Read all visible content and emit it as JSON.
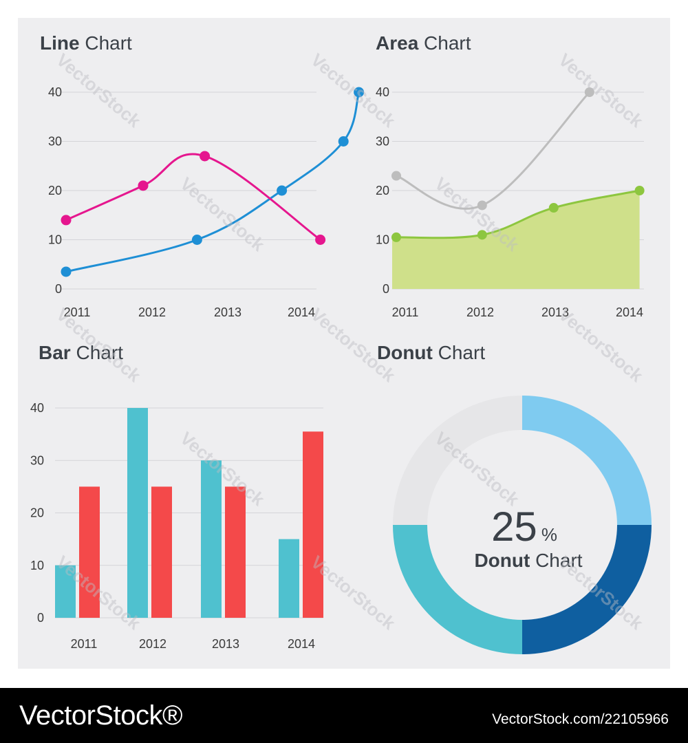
{
  "colors": {
    "panel": "#eeeef0",
    "line_blue": "#1e8fd5",
    "line_pink": "#e5168e",
    "area_gray": "#bdbdbd",
    "area_green_line": "#8dc63f",
    "area_green_fill": "#cfe08a",
    "bar_teal": "#4fc1cf",
    "bar_red": "#f4494a",
    "donut_light_blue": "#7fcbf0",
    "donut_dark_blue": "#0f5fa0",
    "donut_teal": "#4fc1cf",
    "donut_gray": "#e6e6e8"
  },
  "watermark": "VectorStock",
  "footer": {
    "logo": "VectorStock®",
    "image_id": "VectorStock.com/22105966"
  },
  "chart_data": [
    {
      "type": "line",
      "title_bold": "Line",
      "title_rest": " Chart",
      "categories": [
        "2011",
        "2012",
        "2013",
        "2014"
      ],
      "ylim": [
        0,
        40
      ],
      "yticks": [
        0,
        10,
        20,
        30,
        40
      ],
      "series": [
        {
          "name": "blue",
          "color": "#1e8fd5",
          "x": [
            0,
            1.7,
            2.8,
            3.6,
            3.8
          ],
          "y": [
            3.5,
            10,
            20,
            30,
            40
          ]
        },
        {
          "name": "pink",
          "color": "#e5168e",
          "x": [
            0,
            1.0,
            1.8,
            3.3
          ],
          "y": [
            14,
            21,
            27,
            10
          ]
        }
      ]
    },
    {
      "type": "area",
      "title_bold": "Area",
      "title_rest": " Chart",
      "categories": [
        "2011",
        "2012",
        "2013",
        "2014"
      ],
      "ylim": [
        0,
        40
      ],
      "yticks": [
        0,
        10,
        20,
        30,
        40
      ],
      "series": [
        {
          "name": "gray",
          "color": "#bdbdbd",
          "x": [
            0,
            1.2,
            2.7
          ],
          "y": [
            23,
            17,
            40
          ],
          "filled": false
        },
        {
          "name": "green",
          "color": "#8dc63f",
          "x": [
            0,
            1.2,
            2.2,
            3.4
          ],
          "y": [
            10.5,
            11,
            16.5,
            20
          ],
          "filled": true
        }
      ]
    },
    {
      "type": "bar",
      "title_bold": "Bar",
      "title_rest": " Chart",
      "categories": [
        "2011",
        "2012",
        "2013",
        "2014"
      ],
      "ylim": [
        0,
        40
      ],
      "yticks": [
        0,
        10,
        20,
        30,
        40
      ],
      "series": [
        {
          "name": "teal",
          "color": "#4fc1cf",
          "values": [
            10,
            40,
            30,
            15
          ]
        },
        {
          "name": "red",
          "color": "#f4494a",
          "values": [
            25,
            25,
            25,
            35.5
          ]
        }
      ]
    },
    {
      "type": "pie",
      "title_bold": "Donut",
      "title_rest": " Chart",
      "center_value": "25",
      "center_unit": "%",
      "center_label_bold": "Donut",
      "center_label_rest": " Chart",
      "slices": [
        {
          "name": "light-blue",
          "value": 25,
          "color": "#7fcbf0"
        },
        {
          "name": "dark-blue",
          "value": 25,
          "color": "#0f5fa0"
        },
        {
          "name": "teal",
          "value": 25,
          "color": "#4fc1cf"
        },
        {
          "name": "gray",
          "value": 25,
          "color": "#e6e6e8"
        }
      ]
    }
  ]
}
